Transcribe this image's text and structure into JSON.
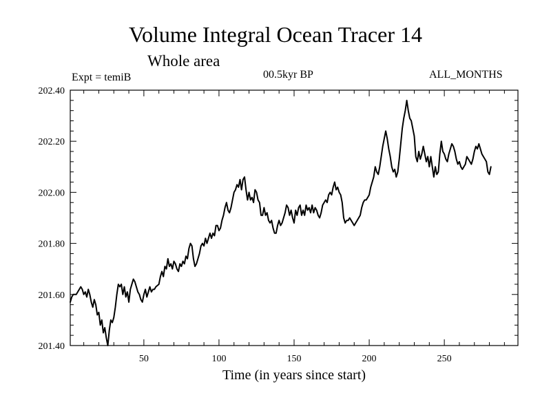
{
  "chart_data": {
    "type": "line",
    "title": "Volume Integral Ocean Tracer 14",
    "subtitle": "Whole area",
    "expt_label": "Expt = temiB",
    "period_label": "00.5kyr BP",
    "months_label": "ALL_MONTHS",
    "xlabel": "Time (in years since start)",
    "ylabel": "",
    "xlim": [
      1,
      299
    ],
    "ylim": [
      201.4,
      202.4
    ],
    "x_ticks": [
      50,
      100,
      150,
      200,
      250
    ],
    "y_ticks": [
      "201.40",
      "201.60",
      "201.80",
      "202.00",
      "202.20",
      "202.40"
    ],
    "grid": false,
    "series": [
      {
        "color": "#000000",
        "points": [
          [
            1,
            201.57
          ],
          [
            2,
            201.59
          ],
          [
            3,
            201.6
          ],
          [
            5,
            201.6
          ],
          [
            7,
            201.62
          ],
          [
            8,
            201.63
          ],
          [
            9,
            201.62
          ],
          [
            10,
            201.6
          ],
          [
            11,
            201.61
          ],
          [
            12,
            201.59
          ],
          [
            13,
            201.62
          ],
          [
            14,
            201.6
          ],
          [
            15,
            201.57
          ],
          [
            16,
            201.55
          ],
          [
            17,
            201.58
          ],
          [
            18,
            201.56
          ],
          [
            19,
            201.52
          ],
          [
            20,
            201.53
          ],
          [
            21,
            201.48
          ],
          [
            22,
            201.5
          ],
          [
            23,
            201.45
          ],
          [
            24,
            201.47
          ],
          [
            25,
            201.43
          ],
          [
            26,
            201.4
          ],
          [
            27,
            201.46
          ],
          [
            28,
            201.5
          ],
          [
            29,
            201.49
          ],
          [
            30,
            201.51
          ],
          [
            31,
            201.55
          ],
          [
            32,
            201.6
          ],
          [
            33,
            201.64
          ],
          [
            34,
            201.63
          ],
          [
            35,
            201.64
          ],
          [
            36,
            201.6
          ],
          [
            37,
            201.63
          ],
          [
            38,
            201.59
          ],
          [
            39,
            201.61
          ],
          [
            40,
            201.57
          ],
          [
            41,
            201.62
          ],
          [
            42,
            201.64
          ],
          [
            43,
            201.66
          ],
          [
            44,
            201.65
          ],
          [
            45,
            201.63
          ],
          [
            46,
            201.61
          ],
          [
            47,
            201.6
          ],
          [
            48,
            201.58
          ],
          [
            49,
            201.57
          ],
          [
            50,
            201.6
          ],
          [
            51,
            201.62
          ],
          [
            52,
            201.59
          ],
          [
            53,
            201.61
          ],
          [
            54,
            201.63
          ],
          [
            55,
            201.61
          ],
          [
            56,
            201.62
          ],
          [
            57,
            201.62
          ],
          [
            58,
            201.63
          ],
          [
            60,
            201.64
          ],
          [
            61,
            201.67
          ],
          [
            62,
            201.69
          ],
          [
            63,
            201.67
          ],
          [
            64,
            201.71
          ],
          [
            65,
            201.7
          ],
          [
            66,
            201.74
          ],
          [
            67,
            201.71
          ],
          [
            68,
            201.72
          ],
          [
            69,
            201.7
          ],
          [
            70,
            201.73
          ],
          [
            71,
            201.72
          ],
          [
            72,
            201.7
          ],
          [
            73,
            201.69
          ],
          [
            74,
            201.72
          ],
          [
            75,
            201.71
          ],
          [
            76,
            201.73
          ],
          [
            77,
            201.72
          ],
          [
            78,
            201.75
          ],
          [
            79,
            201.74
          ],
          [
            80,
            201.78
          ],
          [
            81,
            201.8
          ],
          [
            82,
            201.79
          ],
          [
            83,
            201.74
          ],
          [
            84,
            201.71
          ],
          [
            85,
            201.72
          ],
          [
            86,
            201.74
          ],
          [
            87,
            201.76
          ],
          [
            88,
            201.79
          ],
          [
            89,
            201.8
          ],
          [
            90,
            201.79
          ],
          [
            91,
            201.82
          ],
          [
            92,
            201.8
          ],
          [
            93,
            201.82
          ],
          [
            94,
            201.84
          ],
          [
            95,
            201.82
          ],
          [
            96,
            201.84
          ],
          [
            97,
            201.83
          ],
          [
            98,
            201.87
          ],
          [
            99,
            201.87
          ],
          [
            100,
            201.85
          ],
          [
            101,
            201.86
          ],
          [
            102,
            201.89
          ],
          [
            103,
            201.91
          ],
          [
            104,
            201.94
          ],
          [
            105,
            201.96
          ],
          [
            106,
            201.93
          ],
          [
            107,
            201.92
          ],
          [
            108,
            201.94
          ],
          [
            109,
            201.97
          ],
          [
            110,
            202.0
          ],
          [
            111,
            202.01
          ],
          [
            112,
            202.03
          ],
          [
            113,
            202.02
          ],
          [
            114,
            202.05
          ],
          [
            115,
            202.01
          ],
          [
            116,
            202.05
          ],
          [
            117,
            202.06
          ],
          [
            118,
            202.01
          ],
          [
            119,
            201.97
          ],
          [
            120,
            202.0
          ],
          [
            121,
            201.97
          ],
          [
            122,
            201.98
          ],
          [
            123,
            201.96
          ],
          [
            124,
            202.01
          ],
          [
            125,
            202.0
          ],
          [
            126,
            201.97
          ],
          [
            127,
            201.96
          ],
          [
            128,
            201.91
          ],
          [
            129,
            201.91
          ],
          [
            130,
            201.94
          ],
          [
            131,
            201.91
          ],
          [
            132,
            201.92
          ],
          [
            133,
            201.89
          ],
          [
            134,
            201.88
          ],
          [
            135,
            201.89
          ],
          [
            136,
            201.86
          ],
          [
            137,
            201.84
          ],
          [
            138,
            201.84
          ],
          [
            139,
            201.87
          ],
          [
            140,
            201.89
          ],
          [
            141,
            201.87
          ],
          [
            142,
            201.88
          ],
          [
            143,
            201.9
          ],
          [
            144,
            201.92
          ],
          [
            145,
            201.95
          ],
          [
            146,
            201.94
          ],
          [
            147,
            201.91
          ],
          [
            148,
            201.93
          ],
          [
            149,
            201.9
          ],
          [
            150,
            201.88
          ],
          [
            151,
            201.93
          ],
          [
            152,
            201.91
          ],
          [
            153,
            201.94
          ],
          [
            154,
            201.95
          ],
          [
            155,
            201.91
          ],
          [
            156,
            201.93
          ],
          [
            157,
            201.91
          ],
          [
            158,
            201.95
          ],
          [
            159,
            201.93
          ],
          [
            160,
            201.94
          ],
          [
            161,
            201.92
          ],
          [
            162,
            201.95
          ],
          [
            163,
            201.92
          ],
          [
            164,
            201.94
          ],
          [
            165,
            201.93
          ],
          [
            166,
            201.91
          ],
          [
            167,
            201.9
          ],
          [
            168,
            201.92
          ],
          [
            169,
            201.95
          ],
          [
            170,
            201.96
          ],
          [
            171,
            201.97
          ],
          [
            172,
            201.96
          ],
          [
            173,
            201.99
          ],
          [
            174,
            202.0
          ],
          [
            175,
            201.99
          ],
          [
            176,
            202.02
          ],
          [
            177,
            202.04
          ],
          [
            178,
            202.01
          ],
          [
            179,
            202.02
          ],
          [
            180,
            202.0
          ],
          [
            181,
            201.99
          ],
          [
            182,
            201.96
          ],
          [
            183,
            201.9
          ],
          [
            184,
            201.88
          ],
          [
            185,
            201.89
          ],
          [
            186,
            201.89
          ],
          [
            187,
            201.9
          ],
          [
            188,
            201.89
          ],
          [
            189,
            201.88
          ],
          [
            190,
            201.87
          ],
          [
            191,
            201.88
          ],
          [
            192,
            201.89
          ],
          [
            193,
            201.9
          ],
          [
            194,
            201.91
          ],
          [
            195,
            201.94
          ],
          [
            196,
            201.96
          ],
          [
            197,
            201.97
          ],
          [
            198,
            201.97
          ],
          [
            199,
            201.98
          ],
          [
            200,
            201.99
          ],
          [
            201,
            202.02
          ],
          [
            202,
            202.04
          ],
          [
            203,
            202.06
          ],
          [
            204,
            202.1
          ],
          [
            205,
            202.08
          ],
          [
            206,
            202.07
          ],
          [
            207,
            202.1
          ],
          [
            208,
            202.14
          ],
          [
            209,
            202.18
          ],
          [
            210,
            202.21
          ],
          [
            211,
            202.24
          ],
          [
            212,
            202.21
          ],
          [
            213,
            202.17
          ],
          [
            214,
            202.14
          ],
          [
            215,
            202.1
          ],
          [
            216,
            202.08
          ],
          [
            217,
            202.09
          ],
          [
            218,
            202.06
          ],
          [
            219,
            202.08
          ],
          [
            220,
            202.13
          ],
          [
            221,
            202.19
          ],
          [
            222,
            202.25
          ],
          [
            223,
            202.29
          ],
          [
            224,
            202.32
          ],
          [
            225,
            202.36
          ],
          [
            226,
            202.32
          ],
          [
            227,
            202.29
          ],
          [
            228,
            202.28
          ],
          [
            229,
            202.25
          ],
          [
            230,
            202.22
          ],
          [
            231,
            202.14
          ],
          [
            232,
            202.12
          ],
          [
            233,
            202.16
          ],
          [
            234,
            202.13
          ],
          [
            235,
            202.15
          ],
          [
            236,
            202.18
          ],
          [
            237,
            202.15
          ],
          [
            238,
            202.12
          ],
          [
            239,
            202.14
          ],
          [
            240,
            202.1
          ],
          [
            241,
            202.14
          ],
          [
            242,
            202.1
          ],
          [
            243,
            202.06
          ],
          [
            244,
            202.1
          ],
          [
            245,
            202.07
          ],
          [
            246,
            202.08
          ],
          [
            247,
            202.15
          ],
          [
            248,
            202.2
          ],
          [
            249,
            202.16
          ],
          [
            250,
            202.15
          ],
          [
            251,
            202.13
          ],
          [
            252,
            202.12
          ],
          [
            253,
            202.15
          ],
          [
            254,
            202.17
          ],
          [
            255,
            202.19
          ],
          [
            256,
            202.18
          ],
          [
            257,
            202.16
          ],
          [
            258,
            202.13
          ],
          [
            259,
            202.11
          ],
          [
            260,
            202.12
          ],
          [
            261,
            202.1
          ],
          [
            262,
            202.09
          ],
          [
            263,
            202.1
          ],
          [
            264,
            202.11
          ],
          [
            265,
            202.14
          ],
          [
            266,
            202.13
          ],
          [
            267,
            202.12
          ],
          [
            268,
            202.11
          ],
          [
            269,
            202.13
          ],
          [
            270,
            202.16
          ],
          [
            271,
            202.18
          ],
          [
            272,
            202.17
          ],
          [
            273,
            202.19
          ],
          [
            274,
            202.17
          ],
          [
            275,
            202.15
          ],
          [
            276,
            202.14
          ],
          [
            277,
            202.13
          ],
          [
            278,
            202.12
          ],
          [
            279,
            202.08
          ],
          [
            280,
            202.07
          ],
          [
            281,
            202.1
          ]
        ]
      }
    ]
  }
}
